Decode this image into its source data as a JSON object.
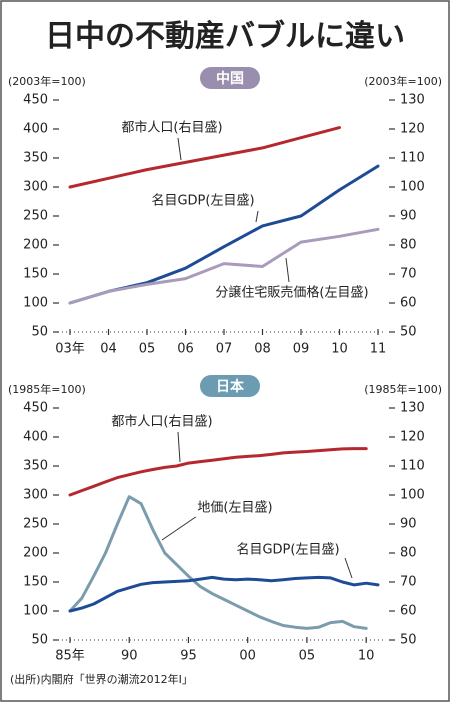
{
  "title": "日中の不動産バブルに違い",
  "source": "(出所)内閣府「世界の潮流2012年Ⅰ」",
  "chart_data": [
    {
      "type": "line",
      "title": "中国",
      "ylabel": "(2003年=100)",
      "y2label": "(2003年=100)",
      "categories": [
        "03年",
        "04",
        "05",
        "06",
        "07",
        "08",
        "09",
        "10",
        "11"
      ],
      "ylim": [
        50,
        450
      ],
      "yticks": [
        50,
        100,
        150,
        200,
        250,
        300,
        350,
        400,
        450
      ],
      "y2lim": [
        50,
        130
      ],
      "y2ticks": [
        50,
        60,
        70,
        80,
        90,
        100,
        110,
        120,
        130
      ],
      "series": [
        {
          "name": "都市人口(右目盛)",
          "color": "#b5282e",
          "axis": "y2",
          "values": [
            100,
            103,
            106,
            108.5,
            111,
            113.5,
            117,
            120.5,
            null
          ]
        },
        {
          "name": "名目GDP(左目盛)",
          "color": "#1d4b96",
          "values": [
            100,
            120,
            135,
            160,
            197,
            233,
            250,
            295,
            336
          ]
        },
        {
          "name": "分譲住宅販売価格(左目盛)",
          "color": "#a99bba",
          "values": [
            100,
            120,
            132,
            142,
            168,
            163,
            205,
            215,
            227
          ]
        }
      ]
    },
    {
      "type": "line",
      "title": "日本",
      "ylabel": "(1985年=100)",
      "y2label": "(1985年=100)",
      "x": [
        1985,
        1986,
        1987,
        1988,
        1989,
        1990,
        1991,
        1992,
        1993,
        1994,
        1995,
        1996,
        1997,
        1998,
        1999,
        2000,
        2001,
        2002,
        2003,
        2004,
        2005,
        2006,
        2007,
        2008,
        2009,
        2010,
        2011
      ],
      "xlim": [
        1985,
        2011
      ],
      "xticks": [
        {
          "value": 1985,
          "label": "85年"
        },
        {
          "value": 1990,
          "label": "90"
        },
        {
          "value": 1995,
          "label": "95"
        },
        {
          "value": 2000,
          "label": "00"
        },
        {
          "value": 2005,
          "label": "05"
        },
        {
          "value": 2010,
          "label": "10"
        }
      ],
      "ylim": [
        50,
        450
      ],
      "yticks": [
        50,
        100,
        150,
        200,
        250,
        300,
        350,
        400,
        450
      ],
      "y2lim": [
        50,
        130
      ],
      "y2ticks": [
        50,
        60,
        70,
        80,
        90,
        100,
        110,
        120,
        130
      ],
      "series": [
        {
          "name": "都市人口(右目盛)",
          "color": "#b5282e",
          "axis": "y2",
          "values": [
            100,
            101.5,
            103,
            104.5,
            106,
            107,
            108,
            108.8,
            109.5,
            110,
            111,
            111.5,
            112,
            112.5,
            113,
            113.3,
            113.6,
            114,
            114.5,
            114.8,
            115,
            115.3,
            115.6,
            115.9,
            116,
            116,
            null
          ]
        },
        {
          "name": "地価(左目盛)",
          "color": "#7b9cac",
          "values": [
            100,
            122,
            160,
            200,
            250,
            297,
            285,
            240,
            200,
            180,
            160,
            142,
            130,
            120,
            110,
            100,
            90,
            82,
            75,
            72,
            70,
            72,
            80,
            82,
            73,
            70,
            null
          ]
        },
        {
          "name": "名目GDP(左目盛)",
          "color": "#1d4b96",
          "values": [
            100,
            105,
            112,
            123,
            134,
            140,
            146,
            149,
            150,
            151,
            152,
            155,
            158,
            155,
            154,
            155,
            154,
            152,
            154,
            156,
            157,
            158,
            157,
            150,
            145,
            148,
            145
          ]
        }
      ]
    }
  ]
}
